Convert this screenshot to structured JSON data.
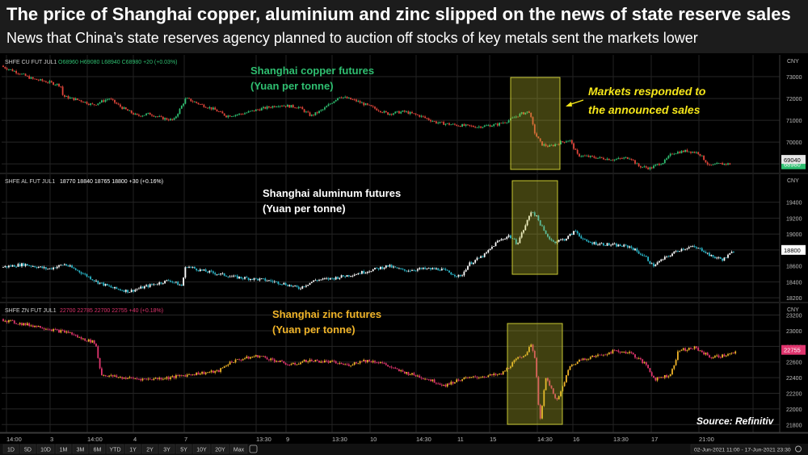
{
  "header": {
    "title": "The price of Shanghai copper, aluminium and zinc slipped  on the news of state reserve sales",
    "subtitle": "News that China’s state reserves agency planned to auction off stocks of key metals sent the markets lower"
  },
  "toolbar": {
    "ranges": [
      "1D",
      "5D",
      "10D",
      "1M",
      "3M",
      "6M",
      "YTD",
      "1Y",
      "2Y",
      "3Y",
      "5Y",
      "10Y",
      "20Y",
      "Max"
    ],
    "date_range": "02-Jun-2021 11:00  -  17-Jun-2021 23:30"
  },
  "source": "Source: Refinitiv",
  "colors": {
    "copper_up": "#2fbf71",
    "copper_down": "#e0453a",
    "aluminum_up": "#ffffff",
    "aluminum_down": "#2ab7ca",
    "zinc_up": "#f0b429",
    "zinc_down": "#e0356e",
    "highlight": "#c8c832",
    "annotation": "#f5e61a"
  },
  "chart_data": [
    {
      "type": "candlestick",
      "name": "copper",
      "title": "Shanghai copper futures",
      "unit": "(Yuan per tonne)",
      "legend": {
        "symbol": "SHFE CU FUT JUL1",
        "o": "O68960",
        "h": "H69080",
        "l": "L68940",
        "c": "C68980",
        "chg": "+20 (+0.03%)"
      },
      "currency": "CNY",
      "ylim": [
        68600,
        74000
      ],
      "yticks": [
        "73000",
        "72000",
        "71000",
        "70000",
        "69000"
      ],
      "last_price": "68980",
      "prev_close": "69040",
      "anchors": [
        [
          0,
          73500
        ],
        [
          18,
          73250
        ],
        [
          40,
          72900
        ],
        [
          60,
          72750
        ],
        [
          75,
          72600
        ],
        [
          78,
          72100
        ],
        [
          100,
          71900
        ],
        [
          115,
          71700
        ],
        [
          135,
          72000
        ],
        [
          150,
          71600
        ],
        [
          170,
          71200
        ],
        [
          185,
          71300
        ],
        [
          200,
          71100
        ],
        [
          215,
          71000
        ],
        [
          230,
          72000
        ],
        [
          250,
          71700
        ],
        [
          265,
          71500
        ],
        [
          280,
          71200
        ],
        [
          300,
          71300
        ],
        [
          320,
          71500
        ],
        [
          345,
          71700
        ],
        [
          370,
          71600
        ],
        [
          385,
          71200
        ],
        [
          400,
          71500
        ],
        [
          420,
          72100
        ],
        [
          440,
          71900
        ],
        [
          460,
          71600
        ],
        [
          480,
          71300
        ],
        [
          500,
          71400
        ],
        [
          520,
          71200
        ],
        [
          540,
          70900
        ],
        [
          560,
          70800
        ],
        [
          590,
          70700
        ],
        [
          615,
          70800
        ],
        [
          630,
          71000
        ],
        [
          645,
          71300
        ],
        [
          655,
          71400
        ],
        [
          662,
          70400
        ],
        [
          670,
          69900
        ],
        [
          680,
          69800
        ],
        [
          695,
          70000
        ],
        [
          705,
          70100
        ],
        [
          715,
          69400
        ],
        [
          735,
          69300
        ],
        [
          760,
          69200
        ],
        [
          780,
          69300
        ],
        [
          790,
          68900
        ],
        [
          805,
          68800
        ],
        [
          815,
          69000
        ],
        [
          822,
          69100
        ],
        [
          832,
          69500
        ],
        [
          850,
          69600
        ],
        [
          865,
          69500
        ],
        [
          878,
          68900
        ],
        [
          890,
          69000
        ],
        [
          905,
          69000
        ]
      ],
      "annotation": "Markets responded to the announced sales"
    },
    {
      "type": "candlestick",
      "name": "aluminum",
      "title": "Shanghai aluminum futures",
      "unit": "(Yuan per tonne)",
      "legend": {
        "symbol": "SHFE AL FUT JUL1",
        "o": "18770",
        "h": "18840",
        "l": "18765",
        "c": "18800",
        "chg": "+30 (+0.16%)"
      },
      "currency": "CNY",
      "ylim": [
        18150,
        19750
      ],
      "yticks": [
        "19400",
        "19200",
        "19000",
        "18800",
        "18600",
        "18400",
        "18200"
      ],
      "last_price": "18800",
      "anchors": [
        [
          0,
          18580
        ],
        [
          30,
          18620
        ],
        [
          60,
          18560
        ],
        [
          80,
          18620
        ],
        [
          100,
          18520
        ],
        [
          120,
          18400
        ],
        [
          140,
          18320
        ],
        [
          160,
          18280
        ],
        [
          180,
          18340
        ],
        [
          210,
          18420
        ],
        [
          225,
          18350
        ],
        [
          230,
          18600
        ],
        [
          250,
          18540
        ],
        [
          270,
          18500
        ],
        [
          290,
          18460
        ],
        [
          310,
          18440
        ],
        [
          330,
          18420
        ],
        [
          350,
          18380
        ],
        [
          370,
          18320
        ],
        [
          390,
          18420
        ],
        [
          410,
          18440
        ],
        [
          440,
          18500
        ],
        [
          465,
          18560
        ],
        [
          480,
          18600
        ],
        [
          500,
          18540
        ],
        [
          520,
          18560
        ],
        [
          545,
          18560
        ],
        [
          570,
          18460
        ],
        [
          580,
          18620
        ],
        [
          600,
          18740
        ],
        [
          615,
          18900
        ],
        [
          630,
          18980
        ],
        [
          640,
          18880
        ],
        [
          650,
          19100
        ],
        [
          658,
          19300
        ],
        [
          665,
          19200
        ],
        [
          675,
          19000
        ],
        [
          685,
          18900
        ],
        [
          700,
          18940
        ],
        [
          712,
          19040
        ],
        [
          725,
          18900
        ],
        [
          740,
          18880
        ],
        [
          760,
          18860
        ],
        [
          780,
          18840
        ],
        [
          800,
          18700
        ],
        [
          808,
          18600
        ],
        [
          820,
          18680
        ],
        [
          840,
          18800
        ],
        [
          855,
          18840
        ],
        [
          870,
          18800
        ],
        [
          880,
          18720
        ],
        [
          895,
          18680
        ],
        [
          910,
          18800
        ]
      ]
    },
    {
      "type": "candlestick",
      "name": "zinc",
      "title": "Shanghai zinc futures",
      "unit": "(Yuan per tonne)",
      "legend": {
        "symbol": "SHFE ZN FUT JUL1",
        "o": "22700",
        "h": "22785",
        "l": "22700",
        "c": "22755",
        "chg": "+40 (+0.18%)"
      },
      "currency": "CNY",
      "ylim": [
        21700,
        23350
      ],
      "yticks": [
        "23200",
        "23000",
        "22800",
        "22600",
        "22400",
        "22200",
        "22000",
        "21800"
      ],
      "last_price": "22755",
      "anchors": [
        [
          0,
          23150
        ],
        [
          20,
          23100
        ],
        [
          50,
          23050
        ],
        [
          70,
          23000
        ],
        [
          85,
          22980
        ],
        [
          100,
          22900
        ],
        [
          118,
          22850
        ],
        [
          125,
          22440
        ],
        [
          150,
          22400
        ],
        [
          180,
          22380
        ],
        [
          210,
          22400
        ],
        [
          240,
          22450
        ],
        [
          270,
          22480
        ],
        [
          285,
          22600
        ],
        [
          300,
          22640
        ],
        [
          320,
          22680
        ],
        [
          340,
          22620
        ],
        [
          360,
          22560
        ],
        [
          380,
          22620
        ],
        [
          410,
          22600
        ],
        [
          430,
          22560
        ],
        [
          450,
          22620
        ],
        [
          470,
          22600
        ],
        [
          490,
          22500
        ],
        [
          510,
          22440
        ],
        [
          530,
          22380
        ],
        [
          550,
          22300
        ],
        [
          570,
          22380
        ],
        [
          600,
          22420
        ],
        [
          620,
          22440
        ],
        [
          640,
          22640
        ],
        [
          650,
          22700
        ],
        [
          658,
          22820
        ],
        [
          663,
          22600
        ],
        [
          668,
          21800
        ],
        [
          675,
          22400
        ],
        [
          680,
          22300
        ],
        [
          690,
          22100
        ],
        [
          705,
          22540
        ],
        [
          720,
          22640
        ],
        [
          740,
          22680
        ],
        [
          760,
          22740
        ],
        [
          780,
          22720
        ],
        [
          800,
          22560
        ],
        [
          810,
          22380
        ],
        [
          830,
          22440
        ],
        [
          840,
          22750
        ],
        [
          860,
          22780
        ],
        [
          880,
          22660
        ],
        [
          895,
          22680
        ],
        [
          912,
          22720
        ]
      ]
    }
  ],
  "xaxis": {
    "labels": [
      "14:00",
      "3",
      "14:00",
      "4",
      "7",
      "13:30",
      "9",
      "13:30",
      "10",
      "14:30",
      "11",
      "15",
      "14:30",
      "16",
      "13:30",
      "17",
      "21:00"
    ]
  }
}
